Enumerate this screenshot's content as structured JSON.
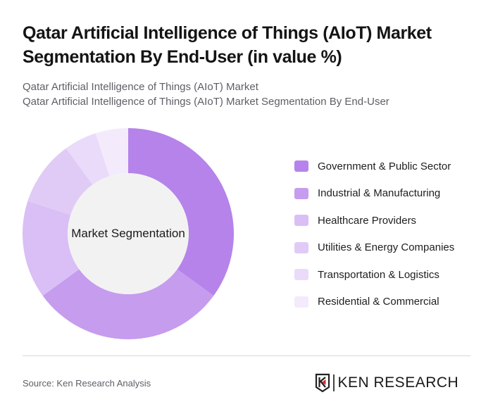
{
  "header": {
    "title": "Qatar Artificial Intelligence of Things (AIoT) Market Segmentation By End-User (in value %)",
    "subtitle_line1": "Qatar Artificial Intelligence of Things (AIoT) Market",
    "subtitle_line2": "Qatar Artificial Intelligence of Things (AIoT) Market Segmentation By End-User"
  },
  "chart": {
    "center_label": "Market Segmentation"
  },
  "legend": {
    "items": [
      {
        "label": "Government & Public Sector",
        "color": "#b583ea"
      },
      {
        "label": "Industrial & Manufacturing",
        "color": "#c69cee"
      },
      {
        "label": "Healthcare Providers",
        "color": "#d9bff5"
      },
      {
        "label": "Utilities & Energy Companies",
        "color": "#e0cbf6"
      },
      {
        "label": "Transportation & Logistics",
        "color": "#e9dbf9"
      },
      {
        "label": "Residential & Commercial",
        "color": "#f3ebfc"
      }
    ]
  },
  "footer": {
    "source": "Source: Ken Research Analysis",
    "logo_text": "KEN RESEARCH"
  },
  "chart_data": {
    "type": "pie",
    "subtype": "donut",
    "title": "Qatar Artificial Intelligence of Things (AIoT) Market Segmentation By End-User (in value %)",
    "center_label": "Market Segmentation",
    "categories": [
      "Government & Public Sector",
      "Industrial & Manufacturing",
      "Healthcare Providers",
      "Utilities & Energy Companies",
      "Transportation & Logistics",
      "Residential & Commercial"
    ],
    "values": [
      35,
      30,
      15,
      10,
      5,
      5
    ],
    "colors": [
      "#b583ea",
      "#c69cee",
      "#d9bff5",
      "#e0cbf6",
      "#e9dbf9",
      "#f3ebfc"
    ],
    "unit": "%",
    "legend_position": "right"
  }
}
